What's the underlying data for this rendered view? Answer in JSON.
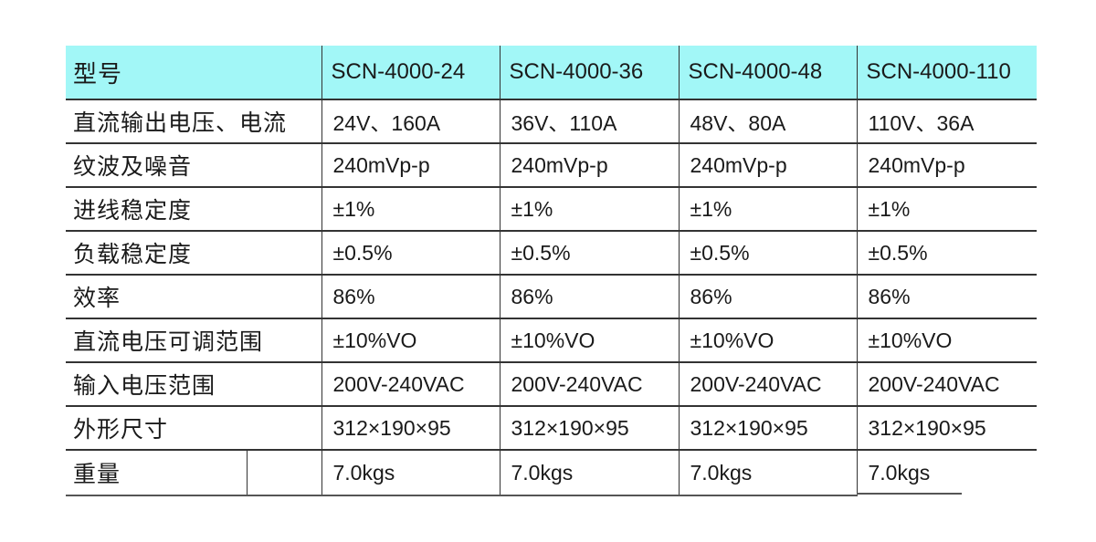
{
  "table": {
    "header": {
      "label": "型号",
      "models": [
        "SCN-4000-24",
        "SCN-4000-36",
        "SCN-4000-48",
        "SCN-4000-110"
      ]
    },
    "rows": [
      {
        "label": "直流输出电压、电流",
        "values": [
          "24V、160A",
          "36V、110A",
          "48V、80A",
          "110V、36A"
        ]
      },
      {
        "label": "纹波及噪音",
        "values": [
          "240mVp-p",
          "240mVp-p",
          "240mVp-p",
          "240mVp-p"
        ]
      },
      {
        "label": "进线稳定度",
        "values": [
          "±1%",
          "±1%",
          "±1%",
          "±1%"
        ]
      },
      {
        "label": "负载稳定度",
        "values": [
          "±0.5%",
          "±0.5%",
          "±0.5%",
          "±0.5%"
        ]
      },
      {
        "label": "效率",
        "values": [
          "86%",
          "86%",
          "86%",
          "86%"
        ]
      },
      {
        "label": "直流电压可调范围",
        "values": [
          "±10%VO",
          "±10%VO",
          "±10%VO",
          "±10%VO"
        ]
      },
      {
        "label": "输入电压范围",
        "values": [
          "200V-240VAC",
          "200V-240VAC",
          "200V-240VAC",
          "200V-240VAC"
        ]
      },
      {
        "label": "外形尺寸",
        "values": [
          "312×190×95",
          "312×190×95",
          "312×190×95",
          "312×190×95"
        ]
      },
      {
        "label": "重量",
        "values": [
          "7.0kgs",
          "7.0kgs",
          "7.0kgs",
          "7.0kgs"
        ]
      }
    ],
    "header_color": "#a2f7f7"
  }
}
